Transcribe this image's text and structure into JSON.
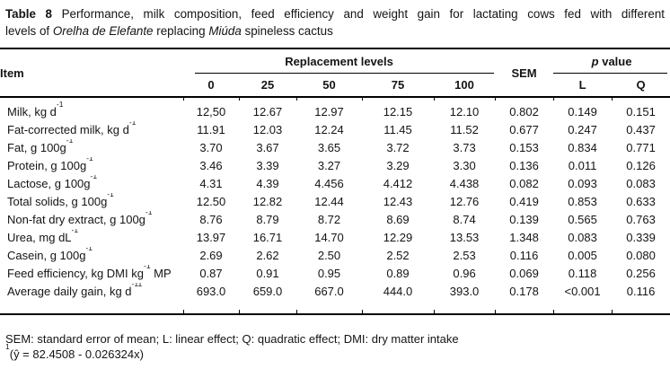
{
  "caption": {
    "label_bold": "Table 8",
    "line1_rest": " Performance, milk composition, feed efficiency and weight gain for lactating cows fed with different",
    "line2_pre": "levels of ",
    "italic1": "Orelha de Elefante",
    "line2_mid": " replacing ",
    "italic2": "Miúda",
    "line2_end": " spineless cactus"
  },
  "table": {
    "item_header": "Item",
    "replacement_header": "Replacement levels",
    "levels": [
      "0",
      "25",
      "50",
      "75",
      "100"
    ],
    "sem_header": "SEM",
    "pvalue_italic": "p",
    "pvalue_rest": " value",
    "linear_header": "L",
    "quadratic_header": "Q",
    "rows": [
      {
        "label": "Milk, kg d",
        "sup": "-1",
        "after": "",
        "values": [
          "12,50",
          "12.67",
          "12.97",
          "12.15",
          "12.10",
          "0.802",
          "0.149",
          "0.151"
        ]
      },
      {
        "label": "Fat-corrected milk, kg d",
        "sup": "-1",
        "after": "",
        "values": [
          "11.91",
          "12.03",
          "12.24",
          "11.45",
          "11.52",
          "0.677",
          "0.247",
          "0.437"
        ]
      },
      {
        "label": "Fat, g 100g",
        "sup": "-1",
        "after": "",
        "values": [
          "3.70",
          "3.67",
          "3.65",
          "3.72",
          "3.73",
          "0.153",
          "0.834",
          "0.771"
        ]
      },
      {
        "label": "Protein, g 100g",
        "sup": "-1",
        "after": "",
        "values": [
          "3.46",
          "3.39",
          "3.27",
          "3.29",
          "3.30",
          "0.136",
          "0.011",
          "0.126"
        ]
      },
      {
        "label": "Lactose, g 100g",
        "sup": "-1",
        "after": "",
        "values": [
          "4.31",
          "4.39",
          "4.456",
          "4.412",
          "4.438",
          "0.082",
          "0.093",
          "0.083"
        ]
      },
      {
        "label": "Total solids, g 100g",
        "sup": "-1",
        "after": "",
        "values": [
          "12.50",
          "12.82",
          "12.44",
          "12.43",
          "12.76",
          "0.419",
          "0.853",
          "0.633"
        ]
      },
      {
        "label": "Non-fat dry extract, g 100g",
        "sup": "-1",
        "after": "",
        "values": [
          "8.76",
          "8.79",
          "8.72",
          "8.69",
          "8.74",
          "0.139",
          "0.565",
          "0.763"
        ]
      },
      {
        "label": "Urea, mg dL",
        "sup": "-1",
        "after": "",
        "values": [
          "13.97",
          "16.71",
          "14.70",
          "12.29",
          "13.53",
          "1.348",
          "0.083",
          "0.339"
        ]
      },
      {
        "label": "Casein, g 100g",
        "sup": "-1",
        "after": "",
        "values": [
          "2.69",
          "2.62",
          "2.50",
          "2.52",
          "2.53",
          "0.116",
          "0.005",
          "0.080"
        ]
      },
      {
        "label": "Feed efficiency, kg DMI kg",
        "sup": "-1",
        "after": " MP",
        "values": [
          "0.87",
          "0.91",
          "0.95",
          "0.89",
          "0.96",
          "0.069",
          "0.118",
          "0.256"
        ]
      },
      {
        "label": "Average daily gain, kg d",
        "sup": "-11",
        "after": "",
        "values": [
          "693.0",
          "659.0",
          "667.0",
          "444.0",
          "393.0",
          "0.178",
          "<0.001",
          "0.116"
        ]
      }
    ]
  },
  "footnotes": {
    "line1": "SEM: standard error of mean; L: linear effect; Q: quadratic effect; DMI: dry matter intake",
    "line2_sup": "1",
    "line2": "(ŷ = 82.4508 - 0.026324x)"
  }
}
